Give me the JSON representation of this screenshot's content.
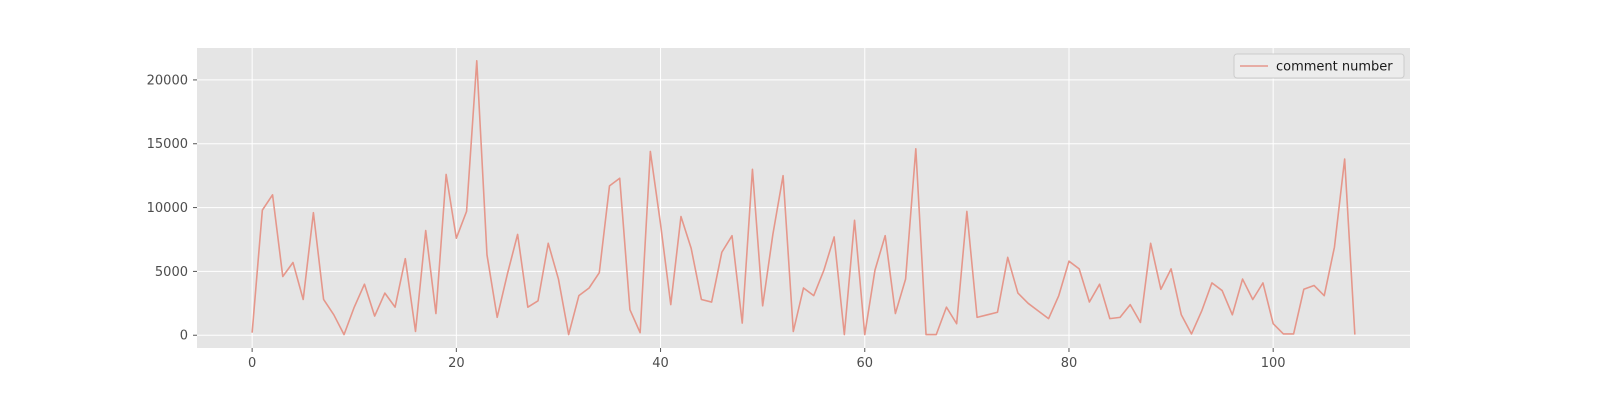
{
  "chart_data": {
    "type": "line",
    "title": "",
    "xlabel": "",
    "ylabel": "",
    "style": "ggplot",
    "grid": true,
    "legend_placement": "top-right",
    "xlim": [
      -5.4,
      113.4
    ],
    "ylim": [
      -1000,
      22500
    ],
    "xticks": [
      0,
      20,
      40,
      60,
      80,
      100
    ],
    "yticks": [
      0,
      5000,
      10000,
      15000,
      20000
    ],
    "xtick_labels": [
      "0",
      "20",
      "40",
      "60",
      "80",
      "100"
    ],
    "ytick_labels": [
      "0",
      "5000",
      "10000",
      "15000",
      "20000"
    ],
    "colors": {
      "plot_bg": "#e5e5e5",
      "grid": "#ffffff",
      "series": "#e5978b",
      "legend_bg": "#ececec",
      "legend_border": "#cccccc"
    },
    "series": [
      {
        "name": "comment number",
        "x": [
          0,
          1,
          2,
          3,
          4,
          5,
          6,
          7,
          8,
          9,
          10,
          11,
          12,
          13,
          14,
          15,
          16,
          17,
          18,
          19,
          20,
          21,
          22,
          23,
          24,
          25,
          26,
          27,
          28,
          29,
          30,
          31,
          32,
          33,
          34,
          35,
          36,
          37,
          38,
          39,
          40,
          41,
          42,
          43,
          44,
          45,
          46,
          47,
          48,
          49,
          50,
          51,
          52,
          53,
          54,
          55,
          56,
          57,
          58,
          59,
          60,
          61,
          62,
          63,
          64,
          65,
          66,
          67,
          68,
          69,
          70,
          71,
          72,
          73,
          74,
          75,
          76,
          77,
          78,
          79,
          80,
          81,
          82,
          83,
          84,
          85,
          86,
          87,
          88,
          89,
          90,
          91,
          92,
          93,
          94,
          95,
          96,
          97,
          98,
          99,
          100,
          101,
          102,
          103,
          104,
          105,
          106,
          107,
          108
        ],
        "values": [
          200,
          9800,
          11000,
          4600,
          5700,
          2800,
          9600,
          2800,
          1600,
          50,
          2200,
          4000,
          1500,
          3300,
          2200,
          6000,
          300,
          8200,
          1700,
          12600,
          7600,
          9700,
          21500,
          6300,
          1400,
          4800,
          7900,
          2200,
          2700,
          7200,
          4400,
          50,
          3100,
          3700,
          4900,
          11700,
          12300,
          2000,
          200,
          14400,
          8700,
          2400,
          9300,
          6800,
          2800,
          2600,
          6500,
          7800,
          950,
          13000,
          2300,
          7900,
          12500,
          300,
          3700,
          3100,
          5100,
          7700,
          50,
          9000,
          50,
          5100,
          7800,
          1700,
          4400,
          14600,
          50,
          50,
          2200,
          900,
          9700,
          1400,
          1600,
          1800,
          6100,
          3300,
          2500,
          1900,
          1300,
          3100,
          5800,
          5200,
          2600,
          4000,
          1300,
          1400,
          2400,
          1000,
          7200,
          3600,
          5200,
          1600,
          100,
          1900,
          4100,
          3500,
          1600,
          4400,
          2800,
          4100,
          900,
          100,
          100,
          3600,
          3900,
          3100,
          6900,
          13800,
          50
        ]
      }
    ]
  }
}
